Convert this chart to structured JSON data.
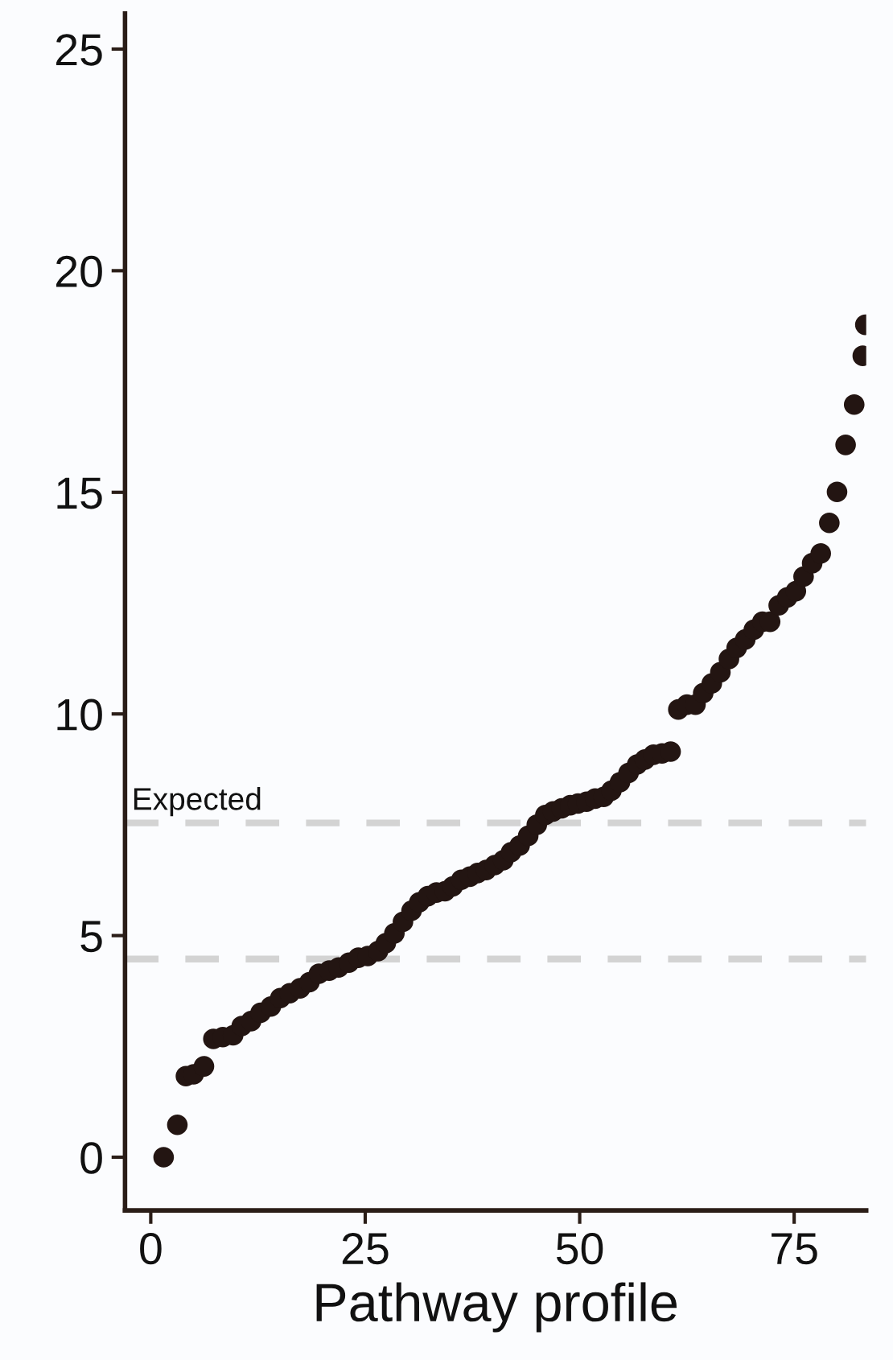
{
  "chart_data": {
    "type": "scatter",
    "xlabel": "Pathway profile",
    "marker": "circle",
    "x": [
      1.5,
      3.1,
      4.1,
      5.0,
      6.2,
      7.3,
      8.4,
      9.6,
      10.6,
      11.7,
      12.8,
      14.0,
      15.1,
      16.2,
      17.4,
      18.5,
      19.6,
      20.8,
      21.9,
      23.1,
      24.2,
      25.3,
      26.5,
      27.4,
      28.4,
      29.4,
      30.4,
      31.3,
      32.3,
      33.3,
      34.3,
      35.2,
      36.2,
      37.2,
      38.1,
      39.1,
      40.1,
      41.1,
      42.0,
      43.0,
      44.0,
      45.0,
      46.0,
      46.9,
      47.9,
      48.9,
      49.8,
      50.8,
      51.8,
      52.8,
      53.7,
      54.7,
      55.7,
      56.7,
      57.6,
      58.6,
      59.6,
      60.6,
      61.5,
      62.5,
      63.5,
      64.4,
      65.4,
      66.4,
      67.4,
      68.3,
      69.3,
      70.3,
      71.3,
      72.2,
      73.2,
      74.2,
      75.2,
      76.1,
      77.1,
      78.1,
      79.1,
      80.0,
      81.0,
      82.0,
      83.0,
      83.3
    ],
    "series": [
      {
        "color": "#231512",
        "values": [
          0,
          0.73,
          1.83,
          1.87,
          2.05,
          2.67,
          2.71,
          2.75,
          2.96,
          3.07,
          3.26,
          3.4,
          3.59,
          3.7,
          3.81,
          3.95,
          4.14,
          4.21,
          4.28,
          4.39,
          4.5,
          4.54,
          4.65,
          4.83,
          5.05,
          5.31,
          5.56,
          5.75,
          5.89,
          5.97,
          6.0,
          6.11,
          6.26,
          6.33,
          6.41,
          6.48,
          6.59,
          6.7,
          6.88,
          7.03,
          7.25,
          7.5,
          7.72,
          7.8,
          7.87,
          7.94,
          7.98,
          8.02,
          8.09,
          8.13,
          8.27,
          8.46,
          8.67,
          8.86,
          8.97,
          9.08,
          9.11,
          9.15,
          10.1,
          10.21,
          10.21,
          10.47,
          10.69,
          10.94,
          11.24,
          11.49,
          11.68,
          11.9,
          12.08,
          12.08,
          12.45,
          12.63,
          12.77,
          13.1,
          13.4,
          13.62,
          14.31,
          15.01,
          16.07,
          16.98,
          18.08,
          18.78
        ]
      }
    ],
    "xlim": [
      -3,
      83.4
    ],
    "xticks": [
      0,
      25,
      50,
      75
    ],
    "ylim": [
      -1.2,
      25.8
    ],
    "yticks": [
      0,
      5,
      10,
      15,
      20,
      25
    ],
    "ref_lines": [
      {
        "axis": "y",
        "value": 7.54,
        "label": "Expected",
        "color": "#d3d3d3",
        "line_style": "dashed"
      },
      {
        "axis": "y",
        "value": 4.47,
        "color": "#d3d3d3",
        "line_style": "dashed"
      }
    ]
  }
}
